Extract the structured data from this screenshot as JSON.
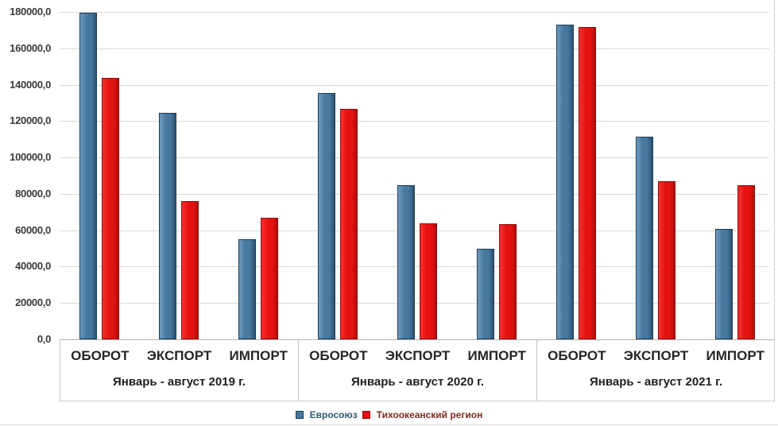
{
  "chart_data": {
    "type": "bar",
    "title": "",
    "categories_per_group": [
      "ОБОРОТ",
      "ЭКСПОРТ",
      "ИМПОРТ"
    ],
    "group_labels": [
      "Январь - август 2019 г.",
      "Январь - август 2020 г.",
      "Январь - август 2021 г."
    ],
    "series": [
      {
        "name": "Евросоюз",
        "color": "#47789E",
        "color_light": "#6E9BBE",
        "color_dark": "#2C5273",
        "border_color": "#1d3c55",
        "label_color": "#2f5a70",
        "values": [
          [
            179500,
            124300,
            55000
          ],
          [
            135300,
            84900,
            49700
          ],
          [
            173100,
            111400,
            60900
          ]
        ]
      },
      {
        "name": "Тихоокеанский регион",
        "color": "#E61212",
        "color_light": "#F83030",
        "color_dark": "#B30D0D",
        "border_color": "#8d0c0c",
        "label_color": "#7b2b20",
        "values": [
          [
            143600,
            75900,
            67000
          ],
          [
            126800,
            63800,
            63400
          ],
          [
            171900,
            87100,
            84800
          ]
        ]
      }
    ],
    "ylim": [
      0,
      180000
    ],
    "ytick_step": 20000,
    "ytick_labels": [
      "0,0",
      "20000,0",
      "40000,0",
      "60000,0",
      "80000,0",
      "100000,0",
      "120000,0",
      "140000,0",
      "160000,0",
      "180000,0"
    ],
    "grid": true,
    "legend_position": "bottom"
  },
  "layout_colors": {
    "gridline": "#d9d9d9",
    "baseline": "#b3b3b3",
    "separator": "#c6c6c6"
  }
}
